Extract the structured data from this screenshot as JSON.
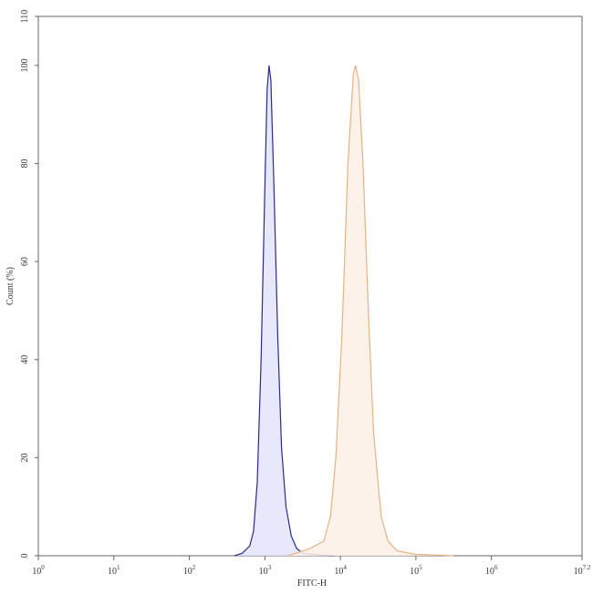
{
  "chart_data": {
    "type": "histogram-overlay",
    "x_label": "FITC-H",
    "y_label": "Count (%)",
    "xscale": "log",
    "xlim": [
      1,
      15848932
    ],
    "xticks": [
      {
        "value": 1,
        "label": "10^0"
      },
      {
        "value": 10,
        "label": "10^1"
      },
      {
        "value": 100,
        "label": "10^2"
      },
      {
        "value": 1000,
        "label": "10^3"
      },
      {
        "value": 10000,
        "label": "10^4"
      },
      {
        "value": 100000,
        "label": "10^5"
      },
      {
        "value": 1000000,
        "label": "10^6"
      },
      {
        "value": 15848932,
        "label": "10^7.2"
      }
    ],
    "ylim": [
      0,
      110
    ],
    "yticks": [
      0,
      20,
      40,
      60,
      80,
      100,
      110
    ],
    "series": [
      {
        "color": "#2b2b8c",
        "fill": "#e4e4fb",
        "x": [
          398,
          501,
          631,
          708,
          794,
          891,
          1000,
          1072,
          1135,
          1202,
          1318,
          1479,
          1660,
          1905,
          2239,
          2630,
          3162,
          5012,
          7943
        ],
        "values": [
          0,
          0.5,
          2,
          5,
          15,
          40,
          75,
          95,
          100,
          97,
          75,
          45,
          22,
          10,
          4,
          1.5,
          0.5,
          0.2,
          0
        ]
      },
      {
        "color": "#e3b384",
        "fill": "#fdf0e6",
        "x": [
          1995,
          2818,
          3981,
          6026,
          7413,
          8710,
          10471,
          12589,
          14791,
          15849,
          17378,
          19953,
          23442,
          27542,
          34674,
          42658,
          56234,
          97724,
          316228
        ],
        "values": [
          0,
          0.7,
          1.5,
          3,
          8,
          20,
          45,
          80,
          98,
          100,
          97,
          80,
          50,
          25,
          8,
          3,
          1,
          0.3,
          0
        ]
      }
    ]
  }
}
